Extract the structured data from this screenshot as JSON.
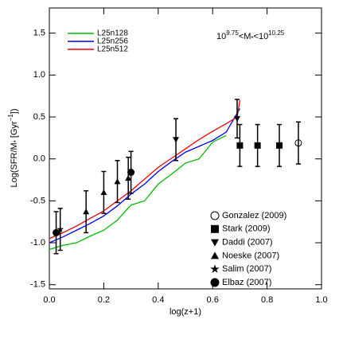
{
  "chart_data": {
    "type": "line",
    "xlabel": "log(z+1)",
    "ylabel_parts": [
      "Log(SFR/M",
      "*",
      " [Gyr",
      "−1",
      "])"
    ],
    "annotation_parts": [
      "10",
      "9.75",
      "<M",
      "*",
      "<10",
      "10.25"
    ],
    "xlim": [
      0,
      1
    ],
    "ylim": [
      -1.55,
      1.8
    ],
    "xticks": [
      {
        "value": 0,
        "label": "0.0"
      },
      0.2,
      0.4,
      0.6,
      0.8,
      {
        "value": 1,
        "label": "1.0"
      }
    ],
    "yticks": [
      -1.5,
      {
        "value": -1,
        "label": "-1.0"
      },
      -0.5,
      {
        "value": 0,
        "label": "0.0"
      },
      0.5,
      {
        "value": 1,
        "label": "1.0"
      },
      1.5
    ],
    "series": [
      {
        "name": "L25n128",
        "color": "#00bb00",
        "x": [
          0,
          0.05,
          0.1,
          0.15,
          0.2,
          0.25,
          0.3,
          0.35,
          0.4,
          0.45,
          0.5,
          0.55,
          0.6,
          0.65
        ],
        "values": [
          -1.08,
          -1.03,
          -1.0,
          -0.92,
          -0.85,
          -0.73,
          -0.55,
          -0.5,
          -0.3,
          -0.18,
          -0.05,
          0.0,
          0.2,
          0.28
        ]
      },
      {
        "name": "L25n256",
        "color": "#0000ee",
        "x": [
          0,
          0.05,
          0.1,
          0.15,
          0.2,
          0.25,
          0.3,
          0.35,
          0.4,
          0.45,
          0.5,
          0.55,
          0.6,
          0.65,
          0.7
        ],
        "values": [
          -1.0,
          -0.93,
          -0.85,
          -0.77,
          -0.68,
          -0.56,
          -0.42,
          -0.3,
          -0.15,
          -0.03,
          0.08,
          0.15,
          0.22,
          0.32,
          0.6
        ]
      },
      {
        "name": "L25n512",
        "color": "#ee0000",
        "x": [
          0,
          0.05,
          0.1,
          0.15,
          0.2,
          0.25,
          0.3,
          0.35,
          0.4,
          0.45,
          0.5,
          0.55,
          0.6,
          0.65,
          0.69,
          0.7
        ],
        "values": [
          -0.95,
          -0.88,
          -0.8,
          -0.71,
          -0.62,
          -0.5,
          -0.38,
          -0.24,
          -0.1,
          0.01,
          0.12,
          0.23,
          0.33,
          0.42,
          0.5,
          0.7
        ]
      }
    ],
    "points": [
      {
        "name": "Gonzalez (2009)",
        "marker": "open-circle",
        "x": [
          0.915
        ],
        "values": [
          0.19
        ],
        "err": [
          0.25
        ]
      },
      {
        "name": "Stark (2009)",
        "marker": "square",
        "x": [
          0.7,
          0.765,
          0.845
        ],
        "values": [
          0.16,
          0.16,
          0.16
        ],
        "err": [
          0.25,
          0.25,
          0.25
        ]
      },
      {
        "name": "Daddi (2007)",
        "marker": "triangle-down",
        "x": [
          0.465,
          0.69
        ],
        "values": [
          0.23,
          0.48
        ],
        "err": [
          0.25,
          0.23
        ]
      },
      {
        "name": "Noeske (2007)",
        "marker": "triangle-up",
        "x": [
          0.135,
          0.2,
          0.25,
          0.29
        ],
        "values": [
          -0.63,
          -0.4,
          -0.27,
          -0.23
        ],
        "err": [
          0.25,
          0.25,
          0.25,
          0.25
        ]
      },
      {
        "name": "Salim (2007)",
        "marker": "star",
        "x": [
          0.04
        ],
        "values": [
          -0.84
        ],
        "err": [
          0.25
        ]
      },
      {
        "name": "Elbaz (2007)",
        "marker": "circle",
        "x": [
          0.025,
          0.3
        ],
        "values": [
          -0.88,
          -0.16
        ],
        "err": [
          0.25,
          0.25
        ]
      }
    ]
  }
}
